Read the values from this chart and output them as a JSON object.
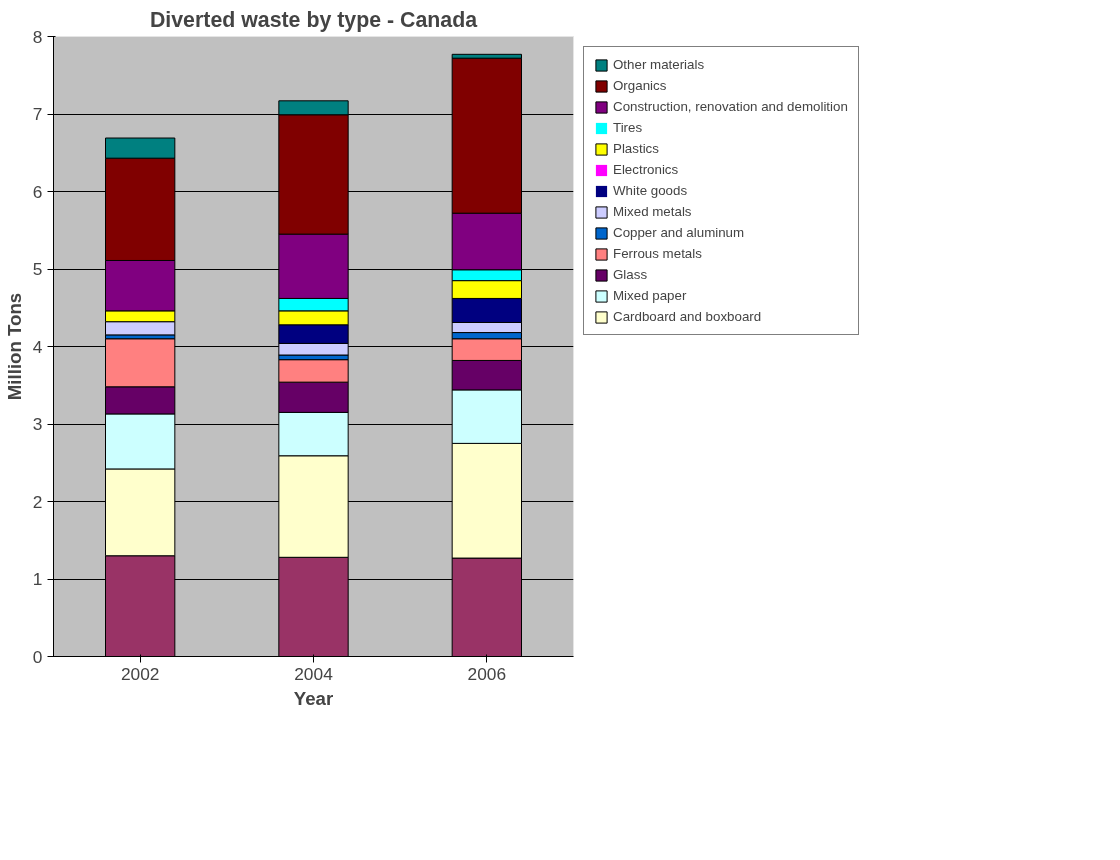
{
  "chart_data": {
    "type": "bar",
    "title": "Diverted waste by type - Canada",
    "xlabel": "Year",
    "ylabel": "Million Tons",
    "categories": [
      "2002",
      "2004",
      "2006"
    ],
    "stacked": true,
    "ylim": [
      0,
      8
    ],
    "yticks": [
      0,
      1,
      2,
      3,
      4,
      5,
      6,
      7,
      8
    ],
    "grid": "y",
    "legend": "right",
    "series": [
      {
        "color": "#993366",
        "values": [
          1.3,
          1.28,
          1.27
        ]
      },
      {
        "name": "Cardboard and boxboard",
        "color": "#ffffcc",
        "values": [
          1.12,
          1.31,
          1.48
        ]
      },
      {
        "name": "Mixed paper",
        "color": "#ccffff",
        "values": [
          0.71,
          0.56,
          0.69
        ]
      },
      {
        "name": "Glass",
        "color": "#660066",
        "values": [
          0.35,
          0.39,
          0.38
        ]
      },
      {
        "name": "Ferrous metals",
        "color": "#ff8080",
        "values": [
          0.62,
          0.29,
          0.28
        ]
      },
      {
        "name": "Copper and aluminum",
        "color": "#0066cc",
        "values": [
          0.05,
          0.06,
          0.08
        ]
      },
      {
        "name": "Mixed metals",
        "color": "#ccccff",
        "values": [
          0.17,
          0.15,
          0.13
        ]
      },
      {
        "name": "White goods",
        "color": "#000080",
        "values": [
          0,
          0.24,
          0.31
        ]
      },
      {
        "name": "Electronics",
        "color": "#ff00ff",
        "values": [
          0,
          0,
          0
        ]
      },
      {
        "name": "Plastics",
        "color": "#ffff00",
        "values": [
          0.14,
          0.18,
          0.23
        ]
      },
      {
        "name": "Tires",
        "color": "#00ffff",
        "values": [
          0,
          0.16,
          0.14
        ]
      },
      {
        "name": "Construction, renovation and demolition",
        "color": "#800080",
        "values": [
          0.65,
          0.83,
          0.73
        ]
      },
      {
        "name": "Organics",
        "color": "#800000",
        "values": [
          1.32,
          1.54,
          2.0
        ]
      },
      {
        "name": "Other materials",
        "color": "#008080",
        "values": [
          0.26,
          0.18,
          0.05
        ]
      }
    ]
  }
}
